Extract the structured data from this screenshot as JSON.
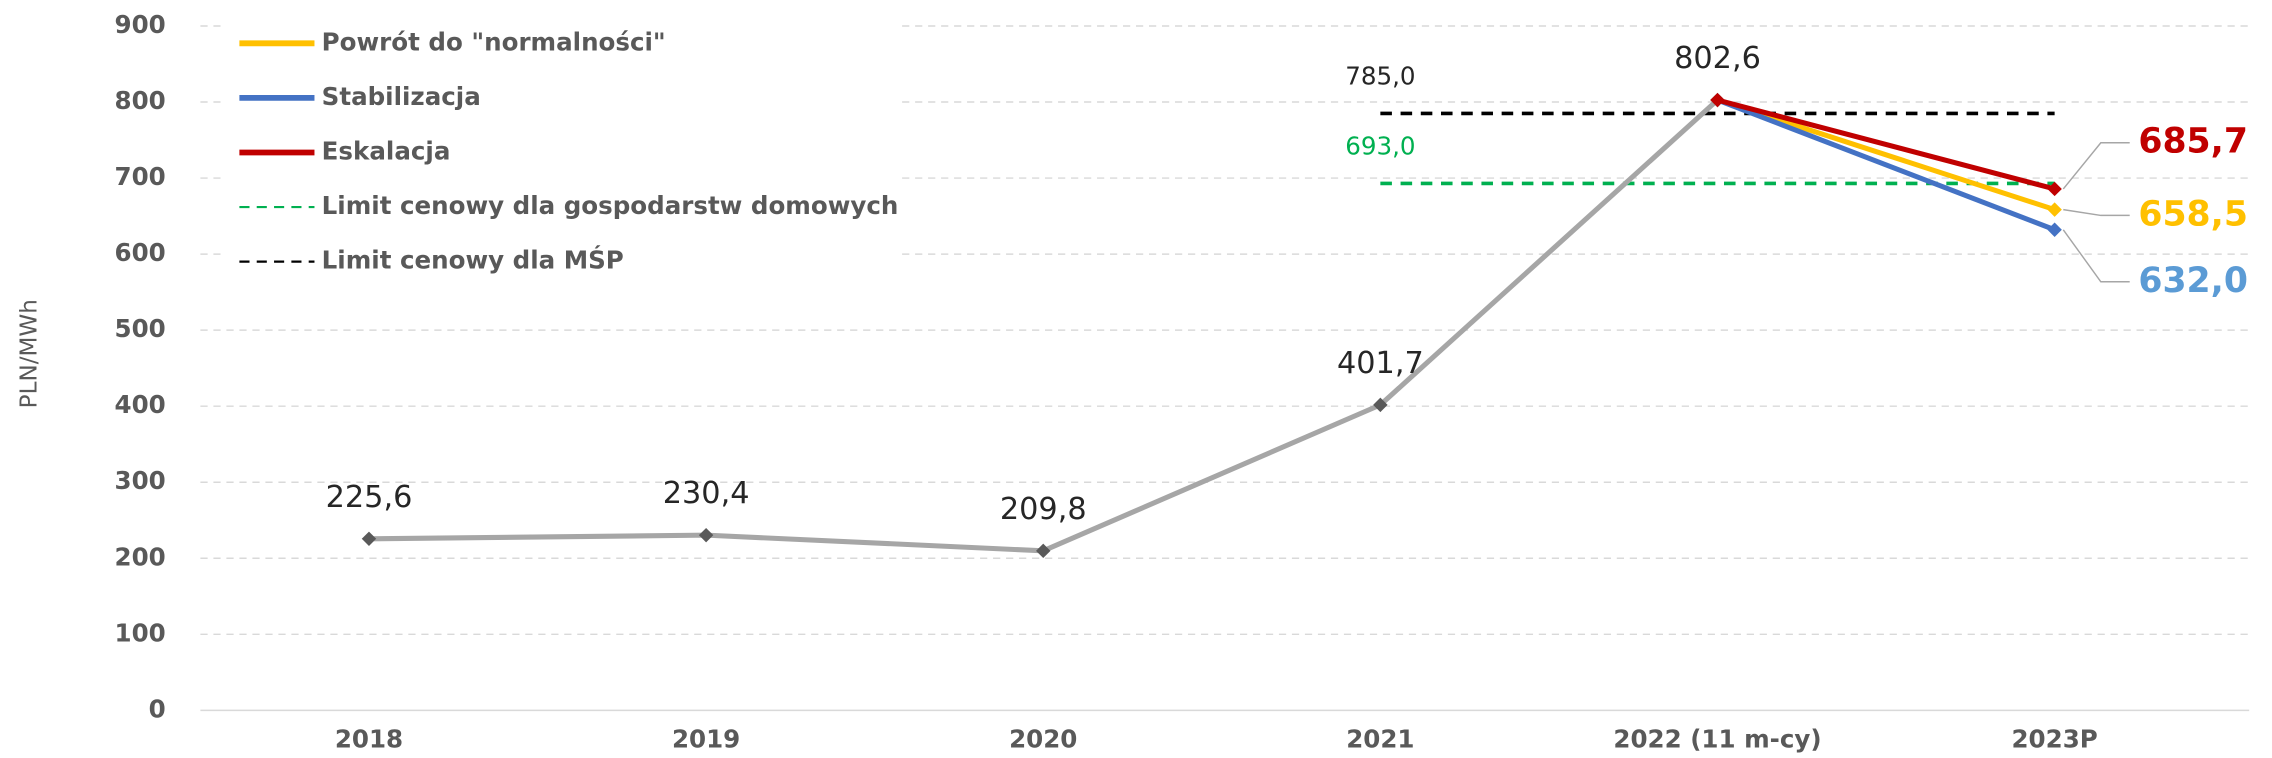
{
  "chart_data": {
    "type": "line",
    "ylabel": "PLN/MWh",
    "categories": [
      "2018",
      "2019",
      "2020",
      "2021",
      "2022 (11 m-cy)",
      "2023P"
    ],
    "ylim": [
      0,
      900
    ],
    "yticks": [
      0,
      100,
      200,
      300,
      400,
      500,
      600,
      700,
      800,
      900
    ],
    "grid": true,
    "series": [
      {
        "color": "#a6a6a6",
        "values": [
          225.6,
          230.4,
          209.8,
          401.7,
          802.6,
          null
        ],
        "value_labels": [
          "225,6",
          "230,4",
          "209,8",
          "401,7",
          "802,6",
          null
        ]
      },
      {
        "name": "Powrót do \"normalności\"",
        "color": "#ffc000",
        "values": [
          null,
          null,
          null,
          null,
          802.6,
          658.5
        ],
        "value_labels": [
          null,
          null,
          null,
          null,
          null,
          "658,5"
        ]
      },
      {
        "name": "Stabilizacja",
        "color": "#4472c4",
        "values": [
          null,
          null,
          null,
          null,
          802.6,
          632.0
        ],
        "value_labels": [
          null,
          null,
          null,
          null,
          null,
          "632,0"
        ]
      },
      {
        "name": "Eskalacja",
        "color": "#c00000",
        "values": [
          null,
          null,
          null,
          null,
          802.6,
          685.7
        ],
        "value_labels": [
          null,
          null,
          null,
          null,
          null,
          "685,7"
        ]
      },
      {
        "name": "Limit cenowy dla gospodarstw domowych",
        "color": "#00b050",
        "dashed": true,
        "values": [
          null,
          null,
          null,
          693.0,
          693.0,
          693.0
        ],
        "value_labels": [
          null,
          null,
          null,
          "693,0",
          null,
          null
        ]
      },
      {
        "name": "Limit cenowy dla MŚP",
        "color": "#000000",
        "dashed": true,
        "values": [
          null,
          null,
          null,
          785.0,
          785.0,
          785.0
        ],
        "value_labels": [
          null,
          null,
          null,
          "785,0",
          null,
          null
        ]
      }
    ]
  }
}
